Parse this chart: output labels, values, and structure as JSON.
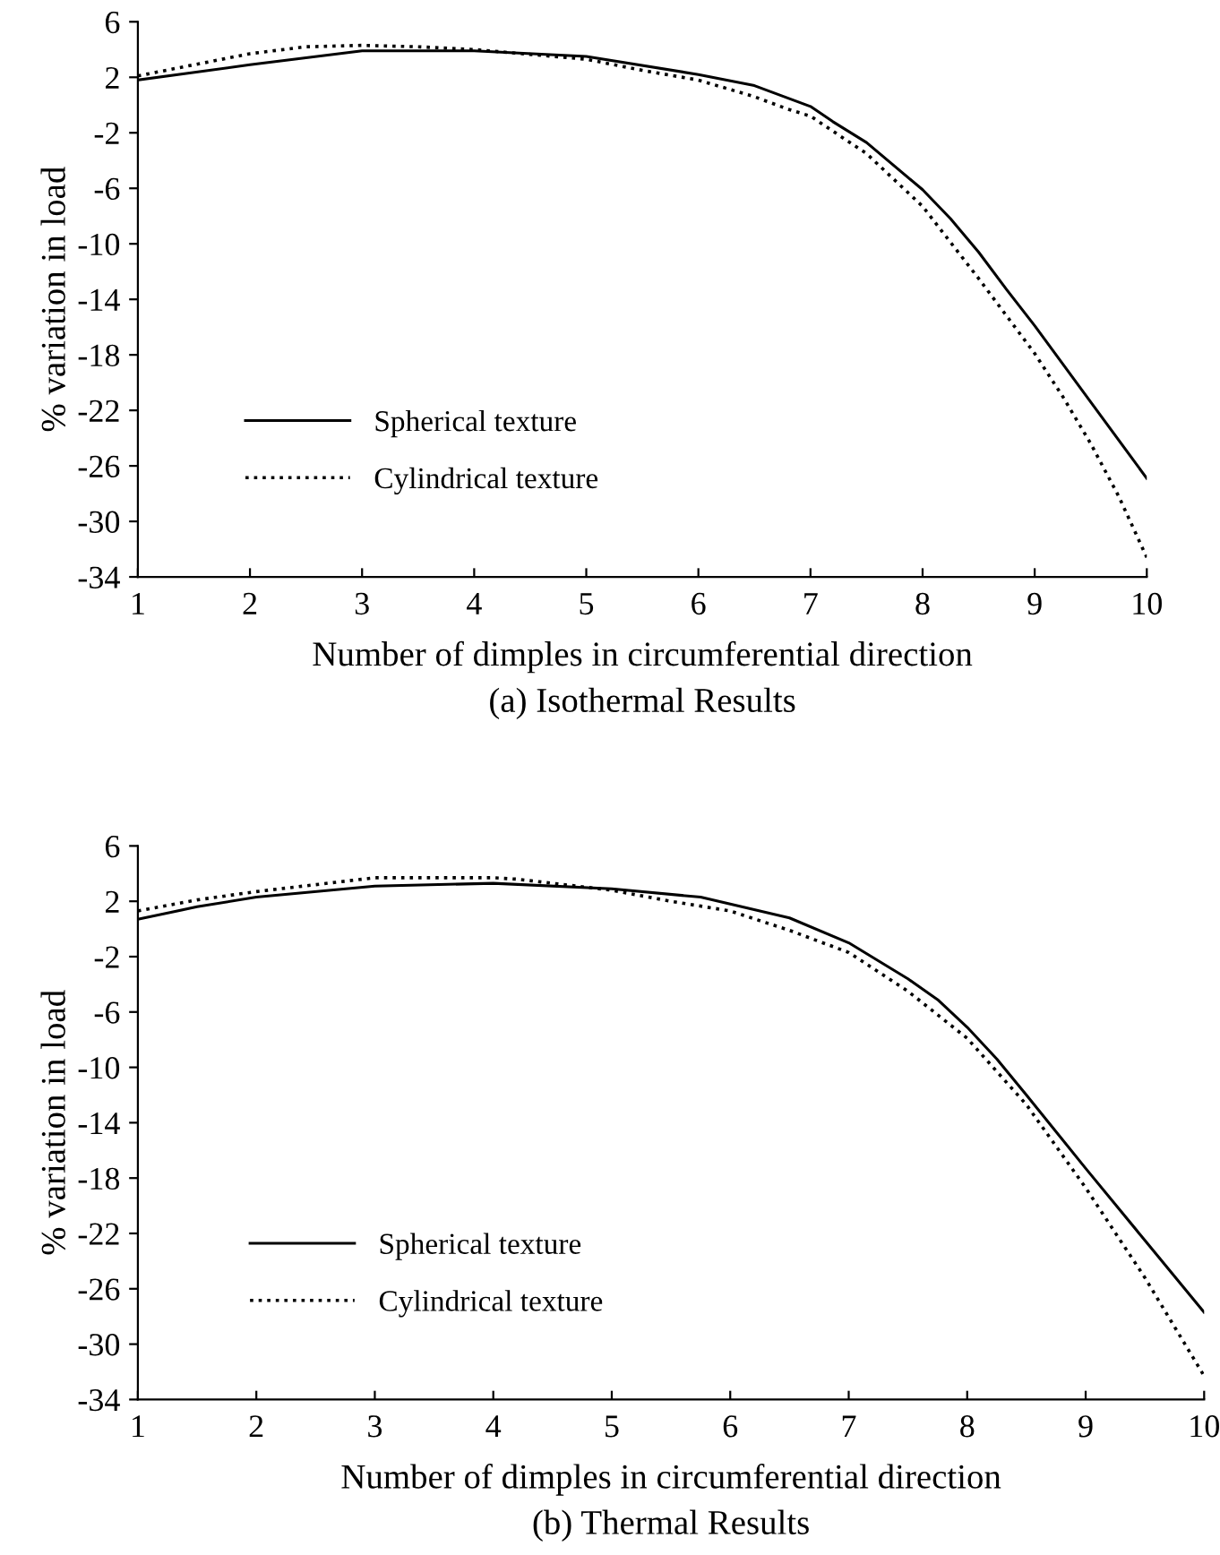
{
  "chart_data": [
    {
      "type": "line",
      "title": "(a) Isothermal Results",
      "xlabel": "Number of dimples in circumferential direction",
      "ylabel": "% variation in load",
      "xlim": [
        1,
        10
      ],
      "xticks": [
        1,
        2,
        3,
        4,
        5,
        6,
        7,
        8,
        9,
        10
      ],
      "ylim": [
        -34,
        6
      ],
      "yticks": [
        6,
        2,
        -2,
        -6,
        -10,
        -14,
        -18,
        -22,
        -26,
        -30,
        -34
      ],
      "grid": false,
      "legend": "bottom left",
      "marker": "none",
      "series": [
        {
          "name": "Spherical texture",
          "color": "#000000",
          "line_style": "solid",
          "x": [
            1,
            2,
            3,
            4,
            5,
            6,
            6.5,
            7,
            7.2,
            7.5,
            8,
            8.25,
            8.5,
            8.75,
            9,
            9.5,
            10
          ],
          "values": [
            1.8,
            2.9,
            3.9,
            3.9,
            3.5,
            2.2,
            1.4,
            -0.1,
            -1.2,
            -2.7,
            -6.1,
            -8.2,
            -10.6,
            -13.3,
            -15.9,
            -21.4,
            -26.9
          ]
        },
        {
          "name": "Cylindrical texture",
          "color": "#000000",
          "line_style": "dotted",
          "x": [
            1,
            2,
            2.5,
            3,
            3.5,
            4,
            5,
            5.5,
            6,
            6.5,
            6.8,
            7,
            7.5,
            8,
            8.5,
            9,
            9.25,
            9.5,
            9.75,
            10
          ],
          "values": [
            2.1,
            3.7,
            4.2,
            4.3,
            4.2,
            4.0,
            3.3,
            2.5,
            1.8,
            0.6,
            -0.3,
            -0.8,
            -3.5,
            -7.3,
            -12.5,
            -17.9,
            -21,
            -24.4,
            -28.2,
            -32.6
          ]
        }
      ]
    },
    {
      "type": "line",
      "title": "(b) Thermal Results",
      "xlabel": "Number of dimples in circumferential direction",
      "ylabel": "% variation in load",
      "xlim": [
        1,
        10
      ],
      "xticks": [
        1,
        2,
        3,
        4,
        5,
        6,
        7,
        8,
        9,
        10
      ],
      "ylim": [
        -34,
        6
      ],
      "yticks": [
        6,
        2,
        -2,
        -6,
        -10,
        -14,
        -18,
        -22,
        -26,
        -30,
        -34
      ],
      "grid": false,
      "legend": "bottom left",
      "marker": "none",
      "series": [
        {
          "name": "Spherical texture",
          "color": "#000000",
          "line_style": "solid",
          "x": [
            1,
            1.5,
            2,
            3,
            4,
            5,
            5.75,
            6,
            6.5,
            7,
            7.5,
            7.75,
            8,
            8.25,
            8.5,
            9,
            9.5,
            10
          ],
          "values": [
            0.7,
            1.6,
            2.3,
            3.1,
            3.3,
            2.9,
            2.3,
            1.8,
            0.8,
            -1.0,
            -3.6,
            -5.1,
            -7.1,
            -9.4,
            -12,
            -17.3,
            -22.5,
            -27.7
          ]
        },
        {
          "name": "Cylindrical texture",
          "color": "#000000",
          "line_style": "dotted",
          "x": [
            1,
            1.5,
            2,
            2.5,
            3,
            4,
            4.2,
            5,
            5.5,
            6,
            6.5,
            7,
            7.5,
            8,
            8.5,
            9,
            9.5,
            10
          ],
          "values": [
            1.3,
            2.1,
            2.7,
            3.2,
            3.7,
            3.7,
            3.6,
            2.8,
            2.0,
            1.3,
            -0.1,
            -1.7,
            -4.5,
            -7.9,
            -12.7,
            -18.7,
            -25.2,
            -32.3
          ]
        }
      ]
    }
  ]
}
